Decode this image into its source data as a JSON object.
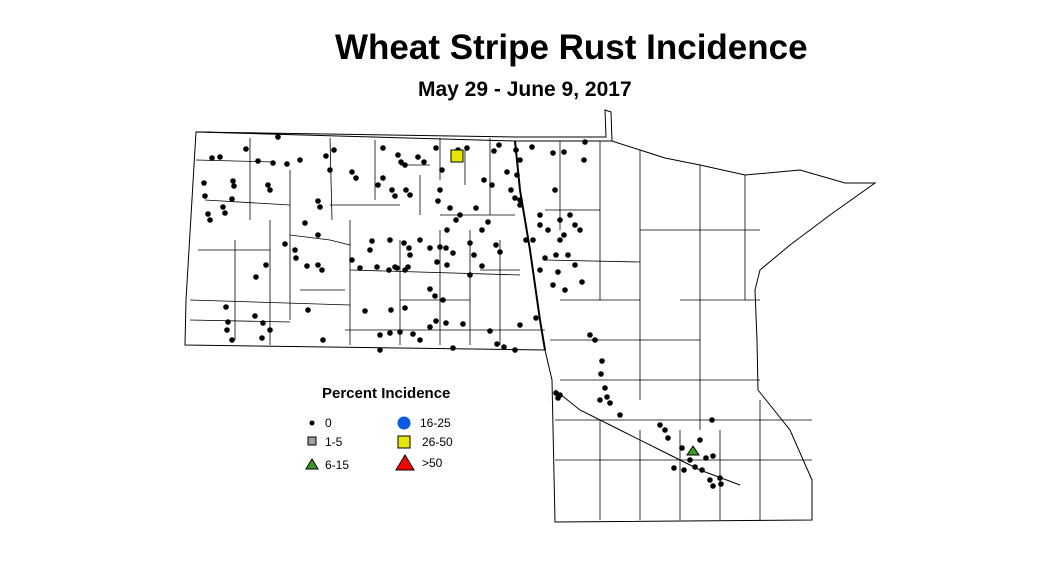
{
  "title": "Wheat Stripe Rust Incidence",
  "subtitle": "May 29 - June 9, 2017",
  "legend": {
    "title": "Percent Incidence",
    "items": [
      {
        "label": "0",
        "symbol": "dot",
        "color": "#000000"
      },
      {
        "label": "1-5",
        "symbol": "square",
        "color": "#a0a0a0"
      },
      {
        "label": "6-15",
        "symbol": "triangle",
        "color": "#3c9a1e"
      },
      {
        "label": "16-25",
        "symbol": "circle",
        "color": "#0a5ae6"
      },
      {
        "label": "26-50",
        "symbol": "square",
        "color": "#e6e600"
      },
      {
        "label": ">50",
        "symbol": "triangle",
        "color": "#ff0000"
      }
    ]
  }
}
